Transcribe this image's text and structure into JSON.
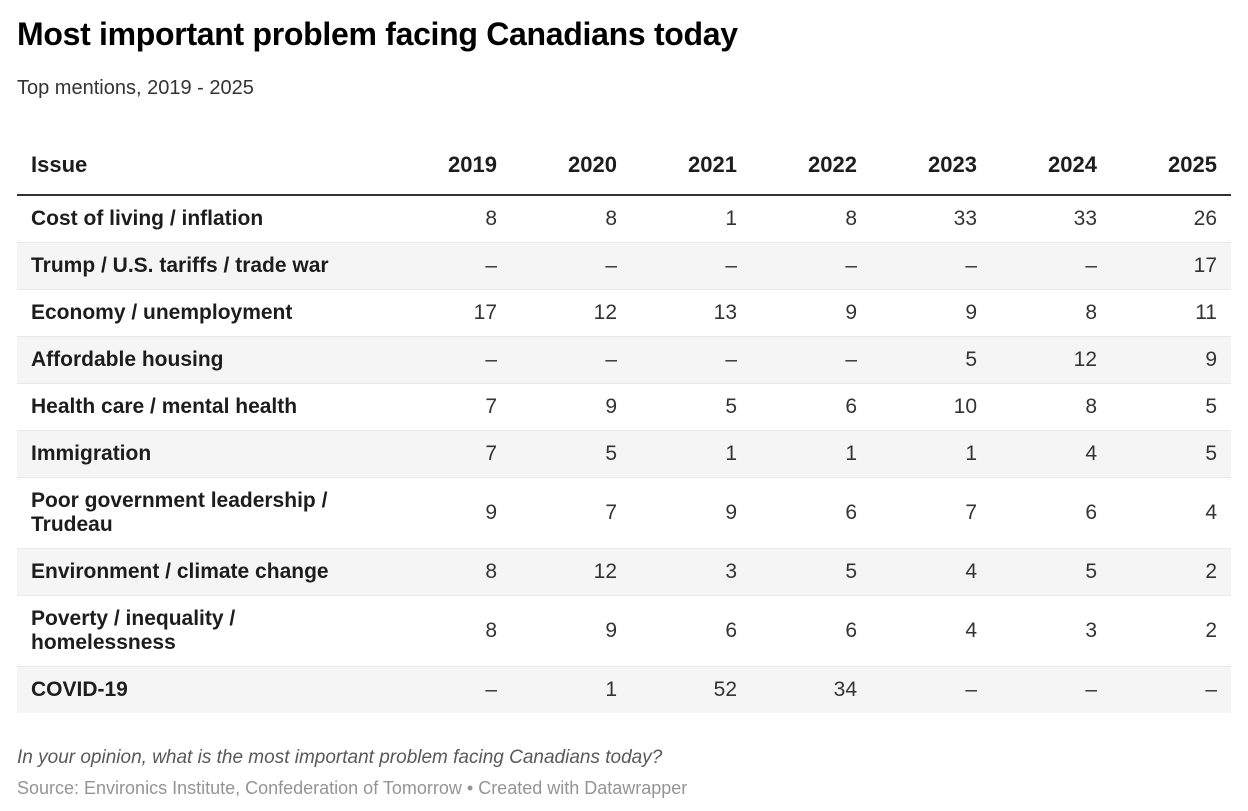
{
  "chart_data": {
    "type": "table",
    "title": "Most important problem facing Canadians today",
    "subtitle": "Top mentions, 2019 - 2025",
    "columns": [
      "Issue",
      "2019",
      "2020",
      "2021",
      "2022",
      "2023",
      "2024",
      "2025"
    ],
    "rows": [
      {
        "issue": "Cost of living / inflation",
        "values": [
          "8",
          "8",
          "1",
          "8",
          "33",
          "33",
          "26"
        ]
      },
      {
        "issue": "Trump / U.S. tariffs / trade war",
        "values": [
          "–",
          "–",
          "–",
          "–",
          "–",
          "–",
          "17"
        ]
      },
      {
        "issue": "Economy / unemployment",
        "values": [
          "17",
          "12",
          "13",
          "9",
          "9",
          "8",
          "11"
        ]
      },
      {
        "issue": "Affordable housing",
        "values": [
          "–",
          "–",
          "–",
          "–",
          "5",
          "12",
          "9"
        ]
      },
      {
        "issue": "Health care / mental health",
        "values": [
          "7",
          "9",
          "5",
          "6",
          "10",
          "8",
          "5"
        ]
      },
      {
        "issue": "Immigration",
        "values": [
          "7",
          "5",
          "1",
          "1",
          "1",
          "4",
          "5"
        ]
      },
      {
        "issue": "Poor government leadership / Trudeau",
        "values": [
          "9",
          "7",
          "9",
          "6",
          "7",
          "6",
          "4"
        ]
      },
      {
        "issue": "Environment / climate change",
        "values": [
          "8",
          "12",
          "3",
          "5",
          "4",
          "5",
          "2"
        ]
      },
      {
        "issue": "Poverty / inequality / homelessness",
        "values": [
          "8",
          "9",
          "6",
          "6",
          "4",
          "3",
          "2"
        ]
      },
      {
        "issue": "COVID-19",
        "values": [
          "–",
          "1",
          "52",
          "34",
          "–",
          "–",
          "–"
        ]
      }
    ],
    "layout": {
      "striped_rows": true,
      "missing_value_symbol": "–",
      "number_alignment": "right"
    }
  },
  "footer": {
    "note": "In your opinion, what is the most important problem facing Canadians today?",
    "source": "Source: Environics Institute, Confederation of Tomorrow • Created with Datawrapper"
  },
  "colors": {
    "title_text": "#000000",
    "body_text": "#333333",
    "label_text": "#1d1d1d",
    "header_rule": "#333333",
    "row_stripe": "#f5f5f5",
    "row_separator": "#e8e8e8",
    "note_text": "#595959",
    "source_text": "#949494",
    "background": "#ffffff"
  }
}
